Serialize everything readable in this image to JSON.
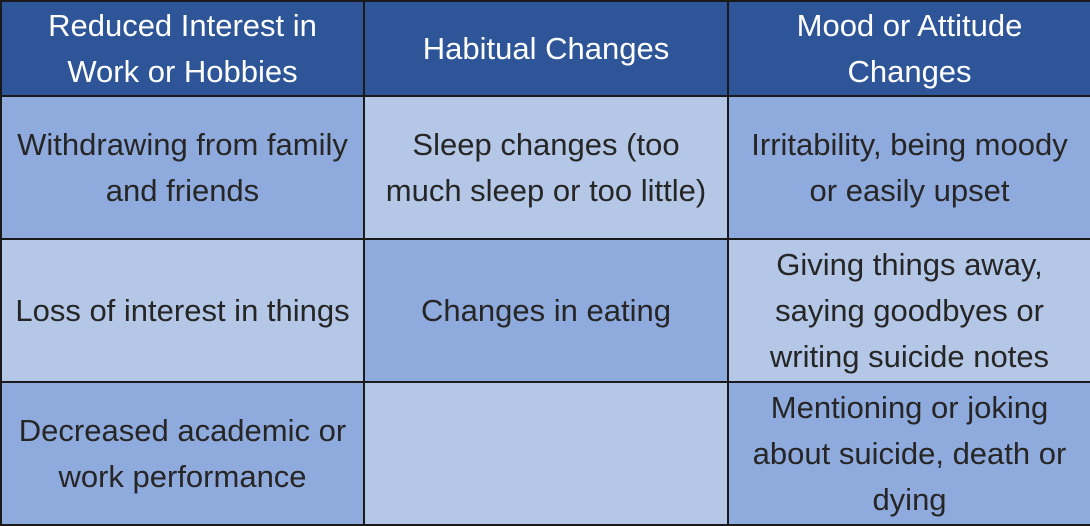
{
  "table": {
    "headers": [
      "Reduced Interest in Work or Hobbies",
      "Habitual Changes",
      "Mood or Attitude Changes"
    ],
    "rows": [
      [
        "Withdrawing from family and friends",
        "Sleep changes (too much sleep or too little)",
        "Irritability, being moody or easily upset"
      ],
      [
        "Loss of interest in things",
        "Changes in eating",
        "Giving things away, saying goodbyes or writing suicide notes"
      ],
      [
        "Decreased academic or work performance",
        "",
        "Mentioning or joking about suicide, death or dying"
      ]
    ]
  },
  "colors": {
    "header": "#2d5597",
    "cell_dark": "#8faadc",
    "cell_light": "#b4c7e7"
  }
}
